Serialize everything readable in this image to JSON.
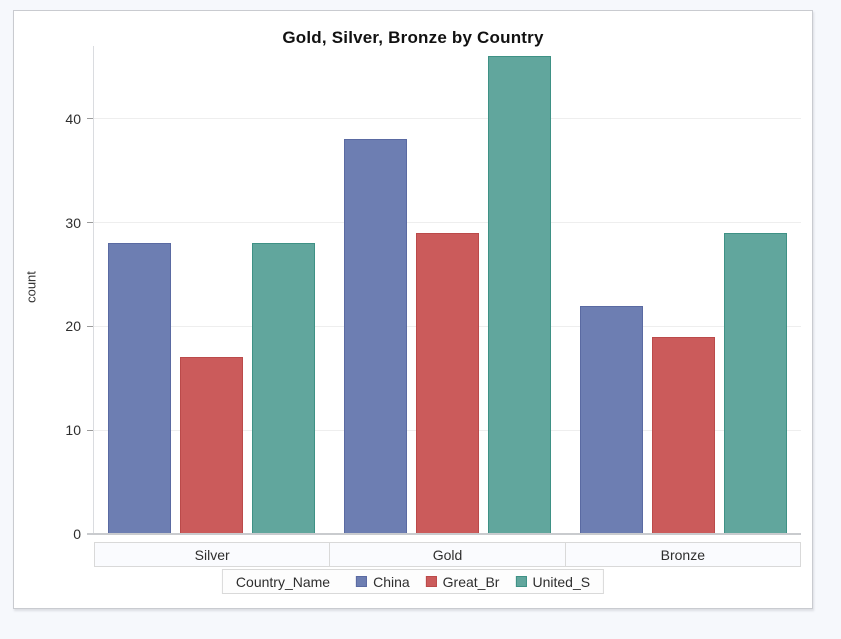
{
  "chart_data": {
    "type": "bar",
    "title": "Gold, Silver, Bronze by Country",
    "xlabel": "",
    "ylabel": "count",
    "categories": [
      "Silver",
      "Gold",
      "Bronze"
    ],
    "series": [
      {
        "name": "China",
        "values": [
          28,
          38,
          22
        ],
        "fill": "#6D7EB2",
        "stroke": "#5A6AA2"
      },
      {
        "name": "Great_Br",
        "values": [
          17,
          29,
          19
        ],
        "fill": "#CB5B5B",
        "stroke": "#BB4A4A"
      },
      {
        "name": "United_S",
        "values": [
          28,
          46,
          29
        ],
        "fill": "#61A69D",
        "stroke": "#3E9185"
      }
    ],
    "yticks": [
      0,
      10,
      20,
      30,
      40
    ],
    "ylim": [
      0,
      47
    ],
    "grid": true,
    "legend_title": "Country_Name",
    "legend_position": "bottom"
  },
  "colors": {
    "page_bg": "#F6F8FC",
    "panel_bg": "#FFFFFF",
    "panel_border": "#C9CBD0",
    "grid": "#EEEEEE",
    "baseline": "#C9CBCE",
    "axis_text": "#2E2E2E",
    "band_bg": "#FAFBFE",
    "band_border": "#D9D9D9",
    "legend_bg": "#FDFDFD",
    "legend_border": "#D9D9D9"
  }
}
